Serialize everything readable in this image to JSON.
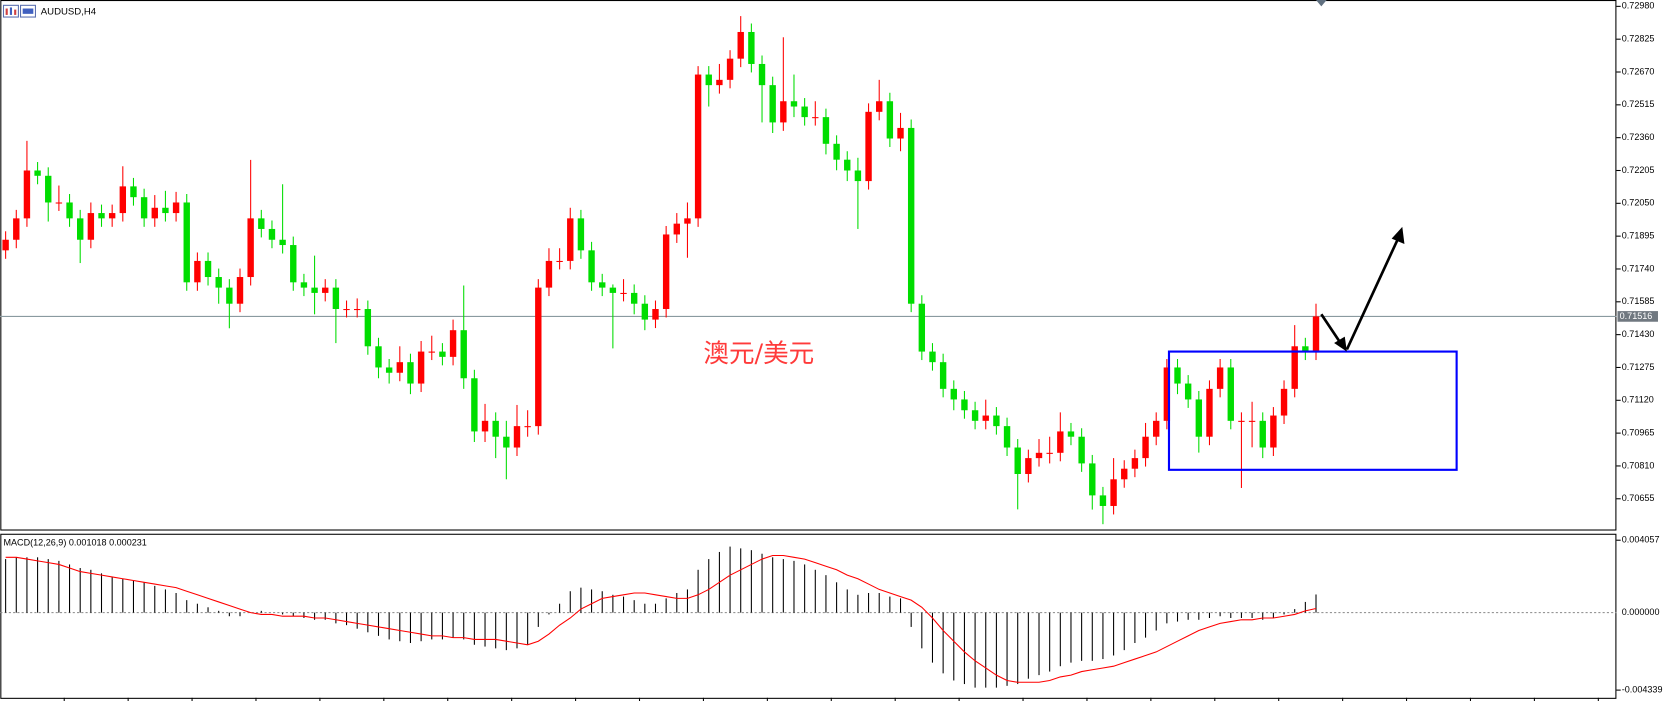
{
  "chart_data": [
    {
      "type": "candlestick",
      "title": "AUDUSD,H4",
      "annotation": "澳元/美元",
      "up_color": "#ff0000",
      "down_color": "#00dd00",
      "ylim": [
        0.70505,
        0.7301
      ],
      "yticks": [
        {
          "value": 0.7298,
          "label": "0.72980"
        },
        {
          "value": 0.72825,
          "label": "0.72825"
        },
        {
          "value": 0.7267,
          "label": "0.72670"
        },
        {
          "value": 0.72515,
          "label": "0.72515"
        },
        {
          "value": 0.7236,
          "label": "0.72360"
        },
        {
          "value": 0.72205,
          "label": "0.72205"
        },
        {
          "value": 0.7205,
          "label": "0.72050"
        },
        {
          "value": 0.71895,
          "label": "0.71895"
        },
        {
          "value": 0.7174,
          "label": "0.71740"
        },
        {
          "value": 0.71585,
          "label": "0.71585"
        },
        {
          "value": 0.7143,
          "label": "0.71430"
        },
        {
          "value": 0.71275,
          "label": "0.71275"
        },
        {
          "value": 0.7112,
          "label": "0.71120"
        },
        {
          "value": 0.70965,
          "label": "0.70965"
        },
        {
          "value": 0.7081,
          "label": "0.70810"
        },
        {
          "value": 0.70655,
          "label": "0.70655"
        }
      ],
      "last_price": {
        "value": 0.71516,
        "label": "0.71516"
      },
      "open": [
        0.71828,
        0.71878,
        0.71979,
        0.72205,
        0.7218,
        0.72054,
        0.72054,
        0.71979,
        0.71878,
        0.72004,
        0.71979,
        0.72004,
        0.7213,
        0.72079,
        0.71979,
        0.72029,
        0.72004,
        0.72054,
        0.71677,
        0.71778,
        0.71702,
        0.71652,
        0.71576,
        0.71702,
        0.71979,
        0.71929,
        0.71878,
        0.71853,
        0.71677,
        0.71652,
        0.71627,
        0.71652,
        0.71551,
        0.71551,
        0.71551,
        0.71375,
        0.71275,
        0.7125,
        0.713,
        0.71199,
        0.7135,
        0.7135,
        0.71325,
        0.71451,
        0.71224,
        0.70973,
        0.71023,
        0.70948,
        0.70897,
        0.70998,
        0.70998,
        0.71652,
        0.71778,
        0.71778,
        0.71979,
        0.71828,
        0.71677,
        0.71652,
        0.71627,
        0.71627,
        0.71576,
        0.71501,
        0.71551,
        0.71903,
        0.71954,
        0.71979,
        0.72658,
        0.72608,
        0.72633,
        0.72733,
        0.72859,
        0.72708,
        0.72608,
        0.72432,
        0.72532,
        0.72507,
        0.72457,
        0.72457,
        0.72331,
        0.72256,
        0.72205,
        0.72155,
        0.72482,
        0.72532,
        0.72356,
        0.72406,
        0.71576,
        0.7135,
        0.713,
        0.71174,
        0.71124,
        0.71073,
        0.71023,
        0.71048,
        0.70998,
        0.70897,
        0.70772,
        0.70847,
        0.70872,
        0.70872,
        0.70973,
        0.70948,
        0.70822,
        0.70671,
        0.70621,
        0.70747,
        0.70797,
        0.70847,
        0.70948,
        0.71023,
        0.71275,
        0.71199,
        0.71124,
        0.70948,
        0.71174,
        0.71275,
        0.71023,
        0.71023,
        0.71023,
        0.70897,
        0.71048,
        0.71174,
        0.71375,
        0.7135
      ],
      "high": [
        0.71918,
        0.72019,
        0.72345,
        0.72245,
        0.7222,
        0.72134,
        0.72094,
        0.72019,
        0.72054,
        0.72044,
        0.72044,
        0.72225,
        0.7217,
        0.72119,
        0.72089,
        0.72109,
        0.72104,
        0.72094,
        0.71818,
        0.71818,
        0.71742,
        0.71692,
        0.71742,
        0.72255,
        0.72019,
        0.71969,
        0.7214,
        0.71893,
        0.71717,
        0.71803,
        0.71692,
        0.71692,
        0.71591,
        0.71601,
        0.71591,
        0.71415,
        0.71315,
        0.71375,
        0.7134,
        0.714,
        0.71425,
        0.7139,
        0.71501,
        0.71662,
        0.71264,
        0.71103,
        0.71063,
        0.71023,
        0.71098,
        0.71073,
        0.71692,
        0.71838,
        0.71838,
        0.72029,
        0.72019,
        0.71868,
        0.71717,
        0.71667,
        0.71692,
        0.71667,
        0.71616,
        0.71591,
        0.71943,
        0.72004,
        0.72054,
        0.72698,
        0.72698,
        0.72708,
        0.72773,
        0.72934,
        0.72899,
        0.72748,
        0.72648,
        0.72834,
        0.72658,
        0.72547,
        0.72532,
        0.72497,
        0.72371,
        0.72296,
        0.72265,
        0.72522,
        0.72633,
        0.72572,
        0.72477,
        0.72446,
        0.71616,
        0.7139,
        0.7134,
        0.71214,
        0.71164,
        0.71113,
        0.71123,
        0.71088,
        0.71038,
        0.70937,
        0.70887,
        0.70937,
        0.70948,
        0.71063,
        0.71013,
        0.70988,
        0.70862,
        0.70711,
        0.70847,
        0.70837,
        0.70887,
        0.71013,
        0.71063,
        0.71315,
        0.71315,
        0.71239,
        0.71164,
        0.71214,
        0.71315,
        0.71315,
        0.71063,
        0.71113,
        0.71063,
        0.71088,
        0.71214,
        0.71475,
        0.71415,
        0.71576
      ],
      "low": [
        0.71788,
        0.71838,
        0.71939,
        0.7214,
        0.71964,
        0.72014,
        0.71939,
        0.71768,
        0.71838,
        0.71939,
        0.71939,
        0.71964,
        0.72039,
        0.71939,
        0.71939,
        0.71964,
        0.71964,
        0.71637,
        0.71637,
        0.71662,
        0.71576,
        0.7146,
        0.71536,
        0.71662,
        0.71889,
        0.71838,
        0.71813,
        0.71637,
        0.71612,
        0.71526,
        0.71587,
        0.7139,
        0.71511,
        0.71511,
        0.71335,
        0.71224,
        0.71199,
        0.7121,
        0.71149,
        0.71159,
        0.7131,
        0.71285,
        0.71285,
        0.71174,
        0.70923,
        0.70923,
        0.70847,
        0.70747,
        0.70857,
        0.70948,
        0.70958,
        0.71612,
        0.71738,
        0.71738,
        0.71788,
        0.71637,
        0.71612,
        0.71365,
        0.71587,
        0.71526,
        0.71451,
        0.71461,
        0.71511,
        0.71863,
        0.71793,
        0.71939,
        0.72507,
        0.72568,
        0.72593,
        0.72693,
        0.72668,
        0.72432,
        0.72382,
        0.72392,
        0.72457,
        0.72417,
        0.72417,
        0.72281,
        0.72206,
        0.72155,
        0.71929,
        0.72115,
        0.72442,
        0.72316,
        0.72296,
        0.71536,
        0.7131,
        0.7126,
        0.71134,
        0.71073,
        0.71033,
        0.70983,
        0.70983,
        0.70958,
        0.70857,
        0.70605,
        0.70732,
        0.70807,
        0.70822,
        0.70832,
        0.70908,
        0.70782,
        0.70604,
        0.70535,
        0.70581,
        0.70707,
        0.70757,
        0.70807,
        0.70908,
        0.70983,
        0.71149,
        0.71084,
        0.70873,
        0.70908,
        0.71134,
        0.70983,
        0.70706,
        0.70898,
        0.70847,
        0.70857,
        0.71008,
        0.71134,
        0.7131,
        0.7131
      ],
      "close": [
        0.71878,
        0.71979,
        0.72205,
        0.7218,
        0.72054,
        0.72054,
        0.71979,
        0.71878,
        0.72004,
        0.71979,
        0.72004,
        0.7213,
        0.72079,
        0.71979,
        0.72029,
        0.72004,
        0.72054,
        0.71677,
        0.71778,
        0.71702,
        0.71652,
        0.71576,
        0.71702,
        0.71979,
        0.71929,
        0.71878,
        0.71853,
        0.71677,
        0.71652,
        0.71627,
        0.71652,
        0.71551,
        0.71551,
        0.71551,
        0.71375,
        0.71275,
        0.7125,
        0.713,
        0.71199,
        0.7135,
        0.7135,
        0.71325,
        0.71451,
        0.71224,
        0.70973,
        0.71023,
        0.70948,
        0.70897,
        0.70998,
        0.70998,
        0.71652,
        0.71778,
        0.71778,
        0.71979,
        0.71828,
        0.71677,
        0.71652,
        0.71627,
        0.71627,
        0.71576,
        0.71501,
        0.71551,
        0.71903,
        0.71954,
        0.71979,
        0.72658,
        0.72608,
        0.72633,
        0.72733,
        0.72859,
        0.72708,
        0.72608,
        0.72432,
        0.72532,
        0.72507,
        0.72457,
        0.72457,
        0.72331,
        0.72256,
        0.72205,
        0.72155,
        0.72482,
        0.72532,
        0.72356,
        0.72406,
        0.71576,
        0.7135,
        0.713,
        0.71174,
        0.71124,
        0.71073,
        0.71023,
        0.71048,
        0.70998,
        0.70897,
        0.70772,
        0.70847,
        0.70872,
        0.70872,
        0.70973,
        0.70948,
        0.70822,
        0.70671,
        0.70621,
        0.70747,
        0.70797,
        0.70847,
        0.70948,
        0.71023,
        0.71275,
        0.71199,
        0.71124,
        0.70948,
        0.71174,
        0.71275,
        0.71023,
        0.71023,
        0.71023,
        0.70897,
        0.71048,
        0.71174,
        0.71375,
        0.7135,
        0.71516
      ]
    },
    {
      "type": "macd",
      "label": "MACD(12,26,9) 0.001018 0.000231",
      "ylim": [
        -0.00477,
        0.00436
      ],
      "yticks": [
        {
          "value": 0.004057,
          "label": "0.004057"
        },
        {
          "value": 0,
          "label": "0.000000"
        },
        {
          "value": -0.004339,
          "label": "-0.004339"
        }
      ],
      "histogram": {
        "color": "#000000",
        "values": [
          0.003,
          0.0031,
          0.0031,
          0.0031,
          0.003,
          0.0029,
          0.0027,
          0.0025,
          0.0024,
          0.0022,
          0.002,
          0.0019,
          0.0018,
          0.0017,
          0.0015,
          0.0013,
          0.0011,
          0.0007,
          0.0005,
          0.0003,
          0.0001,
          -0.0002,
          -0.0002,
          0.0,
          0.0001,
          0.0,
          -0.0001,
          -0.0002,
          -0.0003,
          -0.0004,
          -0.0004,
          -0.0006,
          -0.0007,
          -0.0009,
          -0.0011,
          -0.0013,
          -0.0015,
          -0.0016,
          -0.0017,
          -0.0016,
          -0.0015,
          -0.0015,
          -0.0014,
          -0.0015,
          -0.0018,
          -0.0019,
          -0.002,
          -0.0021,
          -0.002,
          -0.0018,
          -0.0008,
          -0.0001,
          0.0005,
          0.0012,
          0.0014,
          0.0013,
          0.0012,
          0.001,
          0.0009,
          0.0007,
          0.0005,
          0.0005,
          0.0008,
          0.0011,
          0.0013,
          0.0024,
          0.003,
          0.0034,
          0.0037,
          0.0036,
          0.0035,
          0.0033,
          0.0031,
          0.003,
          0.0029,
          0.0027,
          0.0024,
          0.0021,
          0.0017,
          0.0013,
          0.001,
          0.0011,
          0.0011,
          0.0009,
          0.0008,
          -0.0008,
          -0.002,
          -0.0028,
          -0.0034,
          -0.0038,
          -0.004,
          -0.0042,
          -0.0042,
          -0.0042,
          -0.0041,
          -0.004,
          -0.0037,
          -0.0035,
          -0.0033,
          -0.003,
          -0.0028,
          -0.0027,
          -0.0027,
          -0.0026,
          -0.0024,
          -0.0021,
          -0.0017,
          -0.0014,
          -0.001,
          -0.0006,
          -0.0005,
          -0.0004,
          -0.0004,
          -0.0003,
          -0.0002,
          -0.0003,
          -0.0003,
          -0.0003,
          -0.0004,
          -0.0003,
          -0.0001,
          0.0002,
          0.0006,
          0.001018
        ]
      },
      "signal": {
        "color": "#ff0000",
        "values": [
          0.0031,
          0.0031,
          0.003,
          0.0029,
          0.0028,
          0.0027,
          0.0025,
          0.0023,
          0.0022,
          0.0021,
          0.002,
          0.0019,
          0.0018,
          0.0017,
          0.0016,
          0.0015,
          0.0014,
          0.0012,
          0.001,
          0.0008,
          0.0006,
          0.0004,
          0.0002,
          0.0,
          -0.0001,
          -0.0001,
          -0.0002,
          -0.0002,
          -0.0002,
          -0.0003,
          -0.0003,
          -0.0004,
          -0.0005,
          -0.0006,
          -0.0007,
          -0.0008,
          -0.0009,
          -0.001,
          -0.0011,
          -0.0012,
          -0.0013,
          -0.0013,
          -0.0014,
          -0.0014,
          -0.0015,
          -0.0015,
          -0.0015,
          -0.0016,
          -0.0017,
          -0.0018,
          -0.0016,
          -0.0012,
          -0.0007,
          -0.0003,
          0.0002,
          0.0005,
          0.0008,
          0.0009,
          0.001,
          0.0011,
          0.0011,
          0.001,
          0.0009,
          0.0008,
          0.0008,
          0.001,
          0.0013,
          0.0017,
          0.0021,
          0.0024,
          0.0027,
          0.003,
          0.0032,
          0.0032,
          0.0031,
          0.003,
          0.0028,
          0.0026,
          0.0024,
          0.0021,
          0.0019,
          0.0016,
          0.0013,
          0.0011,
          0.0009,
          0.0007,
          0.0003,
          -0.0003,
          -0.001,
          -0.0016,
          -0.0022,
          -0.0027,
          -0.0031,
          -0.0035,
          -0.0038,
          -0.0039,
          -0.0039,
          -0.0039,
          -0.0038,
          -0.0036,
          -0.0035,
          -0.0033,
          -0.0032,
          -0.0031,
          -0.003,
          -0.0028,
          -0.0026,
          -0.0024,
          -0.0022,
          -0.0019,
          -0.0016,
          -0.0013,
          -0.001,
          -0.0008,
          -0.0006,
          -0.0005,
          -0.0004,
          -0.0004,
          -0.0003,
          -0.0003,
          -0.0002,
          -0.0001,
          0.0001,
          0.000231
        ]
      }
    }
  ]
}
